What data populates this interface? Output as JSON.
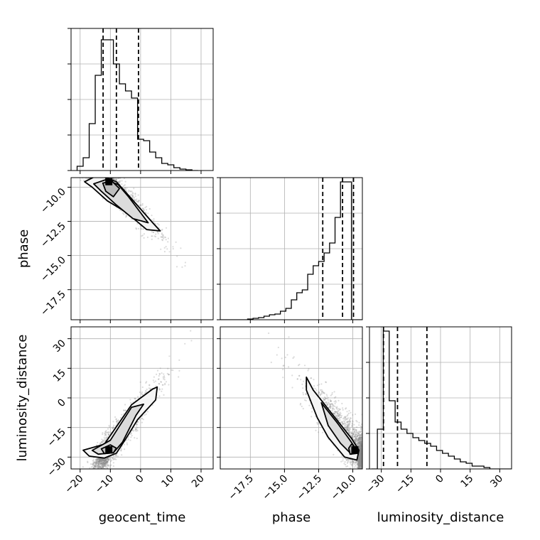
{
  "chart_data": [
    {
      "type": "histogram",
      "panel": "geocent_time",
      "x_bin_edges": [
        -21,
        -19,
        -17,
        -15,
        -13,
        -11,
        -9,
        -7,
        -5,
        -3,
        -1,
        1,
        3,
        5,
        7,
        9,
        11,
        13,
        15,
        17,
        19
      ],
      "density": [
        0.03,
        0.09,
        0.33,
        0.67,
        0.92,
        0.92,
        0.75,
        0.61,
        0.56,
        0.51,
        0.22,
        0.21,
        0.13,
        0.09,
        0.05,
        0.04,
        0.02,
        0.01,
        0.005,
        0.0
      ],
      "quantile_lines": [
        -12.4,
        -8.0,
        -0.7
      ],
      "xlim": [
        -23,
        24
      ],
      "grid": true
    },
    {
      "type": "histogram",
      "panel": "phase",
      "x_bin_edges": [
        -19.7,
        -19.3,
        -18.9,
        -18.5,
        -18.1,
        -17.7,
        -17.3,
        -16.9,
        -16.5,
        -16.1,
        -15.7,
        -15.3,
        -14.9,
        -14.5,
        -14.1,
        -13.7,
        -13.3,
        -12.9,
        -12.5,
        -12.1,
        -11.7,
        -11.3,
        -10.9,
        -10.5,
        -10.1,
        -9.7,
        -9.3
      ],
      "density": [
        0.0,
        0.0,
        0.0,
        0.0,
        0.0,
        0.005,
        0.01,
        0.015,
        0.025,
        0.035,
        0.04,
        0.06,
        0.08,
        0.14,
        0.19,
        0.21,
        0.32,
        0.38,
        0.41,
        0.47,
        0.54,
        0.72,
        0.97,
        0.97,
        0.0,
        0.0
      ],
      "quantile_lines": [
        -12.2,
        -10.75,
        -9.95
      ],
      "xlim": [
        -19.7,
        -9.3
      ],
      "grid": true
    },
    {
      "type": "histogram",
      "panel": "luminosity_distance",
      "x_bin_edges": [
        -35,
        -32,
        -29,
        -26,
        -23,
        -20,
        -17,
        -14,
        -11,
        -8,
        -5,
        -2,
        1,
        4,
        7,
        10,
        13,
        16,
        19,
        22,
        25,
        28,
        31,
        34,
        37
      ],
      "density": [
        0.0,
        0.28,
        0.97,
        0.48,
        0.33,
        0.28,
        0.25,
        0.22,
        0.2,
        0.18,
        0.16,
        0.13,
        0.11,
        0.09,
        0.07,
        0.05,
        0.04,
        0.02,
        0.02,
        0.01,
        0.0,
        0.0,
        0.0,
        0.0
      ],
      "quantile_lines": [
        -28.9,
        -21.8,
        -6.9
      ],
      "xlim": [
        -36,
        36
      ],
      "grid": true
    },
    {
      "type": "scatter",
      "panel": "phase vs geocent_time",
      "x_param": "geocent_time",
      "y_param": "phase",
      "relation": "phase = -9.6 - 0.23 * (geocent_time + 10.5)",
      "mode": [
        -10.5,
        -9.6
      ],
      "contours": [
        [
          [
            -18.5,
            -9.6
          ],
          [
            -14,
            -9.1
          ],
          [
            -8,
            -9.6
          ],
          [
            -4,
            -10.6
          ],
          [
            4,
            -12.6
          ],
          [
            6.5,
            -13.2
          ],
          [
            2,
            -13.1
          ],
          [
            -5,
            -11.8
          ],
          [
            -11,
            -11.0
          ],
          [
            -16,
            -10.0
          ],
          [
            -18.5,
            -9.6
          ]
        ],
        [
          [
            -15.5,
            -9.75
          ],
          [
            -11.5,
            -9.45
          ],
          [
            -7.5,
            -9.8
          ],
          [
            -4,
            -10.7
          ],
          [
            2.5,
            -12.6
          ],
          [
            -2.5,
            -12.3
          ],
          [
            -8,
            -11.3
          ],
          [
            -13,
            -10.3
          ],
          [
            -15.5,
            -9.75
          ]
        ],
        [
          [
            -12.5,
            -9.7
          ],
          [
            -9.5,
            -9.55
          ],
          [
            -7,
            -10.1
          ],
          [
            -9,
            -10.7
          ],
          [
            -11.5,
            -10.3
          ],
          [
            -12.5,
            -9.7
          ]
        ]
      ],
      "xlim": [
        -23,
        24
      ],
      "ylim": [
        -19.7,
        -9.3
      ],
      "grid": true
    },
    {
      "type": "scatter",
      "panel": "luminosity_distance vs geocent_time",
      "x_param": "geocent_time",
      "y_param": "luminosity_distance",
      "relation": "luminosity_distance = -26 + 2.0 * (geocent_time + 10.5)",
      "mode": [
        -10.5,
        -26.3
      ],
      "contours": [
        [
          [
            -19,
            -26.5
          ],
          [
            -12,
            -23.5
          ],
          [
            -3,
            -3.5
          ],
          [
            4,
            4.5
          ],
          [
            5.5,
            5.5
          ],
          [
            5,
            -1
          ],
          [
            -1,
            -11
          ],
          [
            -5,
            -21
          ],
          [
            -8,
            -28
          ],
          [
            -12,
            -30.5
          ],
          [
            -17,
            -29.5
          ],
          [
            -19,
            -26.5
          ]
        ],
        [
          [
            -16,
            -26.6
          ],
          [
            -10,
            -21.5
          ],
          [
            -3,
            -4.8
          ],
          [
            1,
            -3.2
          ],
          [
            -1.5,
            -8.8
          ],
          [
            -6,
            -22.5
          ],
          [
            -9,
            -27.8
          ],
          [
            -14,
            -28.5
          ],
          [
            -16,
            -26.6
          ]
        ],
        [
          [
            -13,
            -25.8
          ],
          [
            -10,
            -23.8
          ],
          [
            -8,
            -25.5
          ],
          [
            -9,
            -27.8
          ],
          [
            -12,
            -28.2
          ],
          [
            -13,
            -25.8
          ]
        ]
      ],
      "xlim": [
        -23,
        24
      ],
      "ylim": [
        -36,
        36
      ],
      "grid": true
    },
    {
      "type": "scatter",
      "panel": "luminosity_distance vs phase",
      "x_param": "phase",
      "y_param": "luminosity_distance",
      "relation": "luminosity_distance = -26 + 14 * (phase + 9.85) near mode",
      "mode": [
        -9.85,
        -26.3
      ],
      "contours": [
        [
          [
            -13.4,
            10.5
          ],
          [
            -12.9,
            4
          ],
          [
            -11.3,
            -10
          ],
          [
            -10.1,
            -20.5
          ],
          [
            -9.55,
            -26.5
          ],
          [
            -9.7,
            -31.5
          ],
          [
            -10.6,
            -30
          ],
          [
            -11.8,
            -20
          ],
          [
            -12.6,
            -10
          ],
          [
            -13.4,
            4
          ],
          [
            -13.4,
            10.5
          ]
        ],
        [
          [
            -12.3,
            -2.5
          ],
          [
            -11.1,
            -13
          ],
          [
            -10.25,
            -21
          ],
          [
            -9.7,
            -26.5
          ],
          [
            -10.1,
            -28.5
          ],
          [
            -10.9,
            -23
          ],
          [
            -11.8,
            -14
          ],
          [
            -12.3,
            -2.5
          ]
        ],
        [
          [
            -10.1,
            -23.5
          ],
          [
            -9.7,
            -25.5
          ],
          [
            -9.6,
            -28
          ],
          [
            -10.2,
            -28.5
          ],
          [
            -10.3,
            -25.5
          ],
          [
            -10.1,
            -23.5
          ]
        ]
      ],
      "xlim": [
        -19.7,
        -9.3
      ],
      "ylim": [
        -36,
        36
      ],
      "grid": true
    }
  ],
  "axes": {
    "geocent_time": {
      "label": "geocent_time",
      "ticks": [
        -20,
        -10,
        0,
        10,
        20
      ],
      "tick_labels": [
        "−20",
        "−10",
        "0",
        "10",
        "20"
      ]
    },
    "phase": {
      "label": "phase",
      "ticks": [
        -17.5,
        -15.0,
        -12.5,
        -10.0
      ],
      "tick_labels": [
        "−17.5",
        "−15.0",
        "−12.5",
        "−10.0"
      ]
    },
    "luminosity_distance": {
      "label": "luminosity_distance",
      "ticks": [
        -30,
        -15,
        0,
        15,
        30
      ],
      "tick_labels": [
        "−30",
        "−15",
        "0",
        "15",
        "30"
      ]
    }
  },
  "colors": {
    "contour": "#000000",
    "points": "#8c8c8c",
    "grid": "#b0b0b0",
    "quantile": "#000000"
  }
}
